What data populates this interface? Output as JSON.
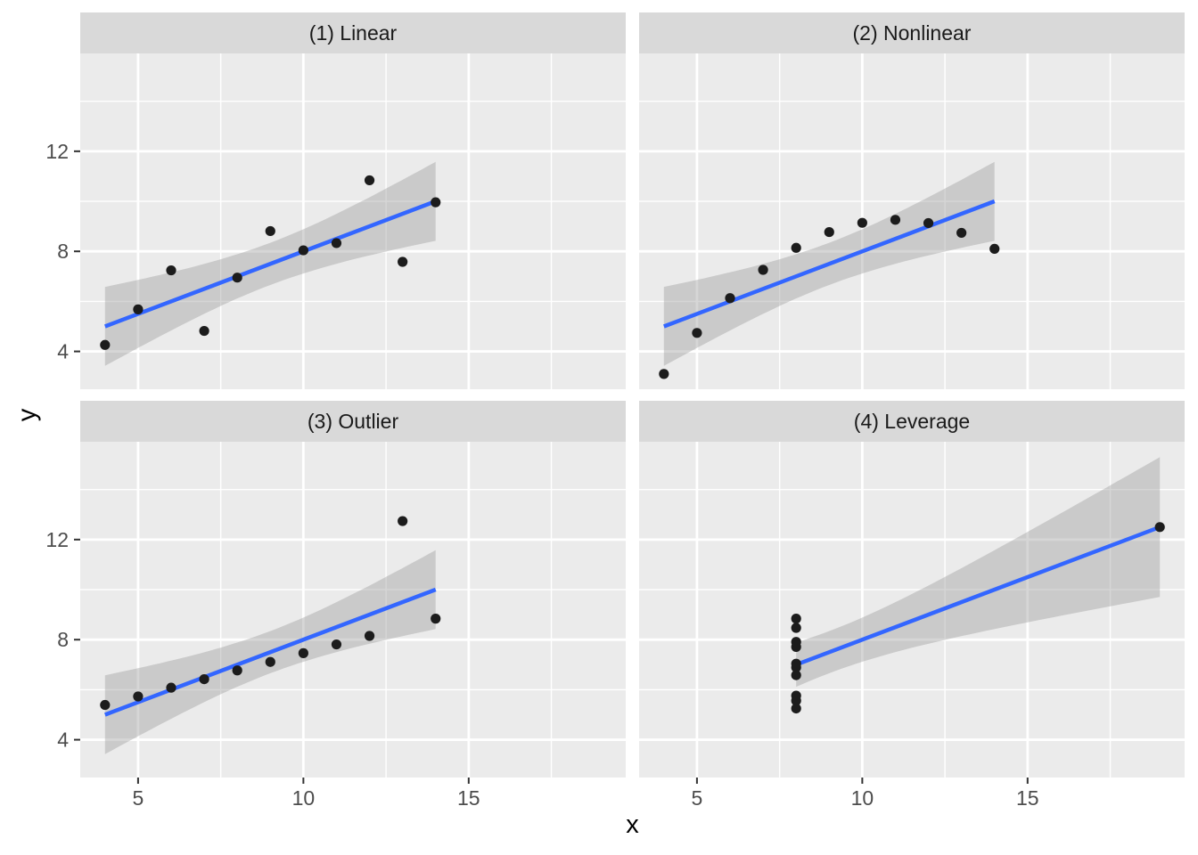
{
  "chart_data": {
    "type": "scatter",
    "title": "",
    "xlabel": "x",
    "ylabel": "y",
    "facet_layout": "2x2",
    "grid": true,
    "legend": "none",
    "xlim": [
      3.25,
      19.75
    ],
    "ylim": [
      2.49,
      15.91
    ],
    "x_ticks": [
      5,
      10,
      15
    ],
    "y_ticks": [
      4,
      8,
      12
    ],
    "x_minor_breaks": [
      7.5,
      12.5,
      17.5
    ],
    "y_minor_breaks": [
      6,
      10,
      14
    ],
    "facets": [
      {
        "label": "(1) Linear",
        "points": [
          [
            10,
            8.04
          ],
          [
            8,
            6.95
          ],
          [
            13,
            7.58
          ],
          [
            9,
            8.81
          ],
          [
            11,
            8.33
          ],
          [
            14,
            9.96
          ],
          [
            6,
            7.24
          ],
          [
            4,
            4.26
          ],
          [
            12,
            10.84
          ],
          [
            7,
            4.82
          ],
          [
            5,
            5.68
          ]
        ],
        "smooth": {
          "method": "lm",
          "intercept": 3.0,
          "slope": 0.5,
          "sigma": 1.2366,
          "t_crit": 2.2622,
          "x_mean": 9,
          "sxx": 110,
          "n": 11,
          "x_from": 4,
          "x_to": 14
        }
      },
      {
        "label": "(2) Nonlinear",
        "points": [
          [
            10,
            9.14
          ],
          [
            8,
            8.14
          ],
          [
            13,
            8.74
          ],
          [
            9,
            8.77
          ],
          [
            11,
            9.26
          ],
          [
            14,
            8.1
          ],
          [
            6,
            6.13
          ],
          [
            4,
            3.1
          ],
          [
            12,
            9.13
          ],
          [
            7,
            7.26
          ],
          [
            5,
            4.74
          ]
        ],
        "smooth": {
          "method": "lm",
          "intercept": 3.0,
          "slope": 0.5,
          "sigma": 1.2372,
          "t_crit": 2.2622,
          "x_mean": 9,
          "sxx": 110,
          "n": 11,
          "x_from": 4,
          "x_to": 14
        }
      },
      {
        "label": "(3) Outlier",
        "points": [
          [
            10,
            7.46
          ],
          [
            8,
            6.77
          ],
          [
            13,
            12.74
          ],
          [
            9,
            7.11
          ],
          [
            11,
            7.81
          ],
          [
            14,
            8.84
          ],
          [
            6,
            6.08
          ],
          [
            4,
            5.39
          ],
          [
            12,
            8.15
          ],
          [
            7,
            6.42
          ],
          [
            5,
            5.73
          ]
        ],
        "smooth": {
          "method": "lm",
          "intercept": 3.0,
          "slope": 0.5,
          "sigma": 1.2363,
          "t_crit": 2.2622,
          "x_mean": 9,
          "sxx": 110,
          "n": 11,
          "x_from": 4,
          "x_to": 14
        }
      },
      {
        "label": "(4) Leverage",
        "points": [
          [
            8,
            6.58
          ],
          [
            8,
            5.76
          ],
          [
            8,
            7.71
          ],
          [
            8,
            8.84
          ],
          [
            8,
            8.47
          ],
          [
            8,
            7.04
          ],
          [
            8,
            5.25
          ],
          [
            19,
            12.5
          ],
          [
            8,
            5.56
          ],
          [
            8,
            7.91
          ],
          [
            8,
            6.89
          ]
        ],
        "smooth": {
          "method": "lm",
          "intercept": 3.0,
          "slope": 0.5,
          "sigma": 1.2357,
          "t_crit": 2.2622,
          "x_mean": 9,
          "sxx": 110,
          "n": 11,
          "x_from": 8,
          "x_to": 19
        }
      }
    ],
    "colors": {
      "smooth_line": "#3366FF",
      "ribbon_fill": "#999999",
      "ribbon_opacity": 0.4,
      "point": "#1C1C1C",
      "panel_bg": "#EBEBEB",
      "strip_bg": "#D9D9D9",
      "grid": "#FFFFFF",
      "tick_text": "#4D4D4D",
      "strip_text": "#1A1A1A",
      "axis_title": "#000000",
      "tick_mark": "#333333"
    }
  }
}
